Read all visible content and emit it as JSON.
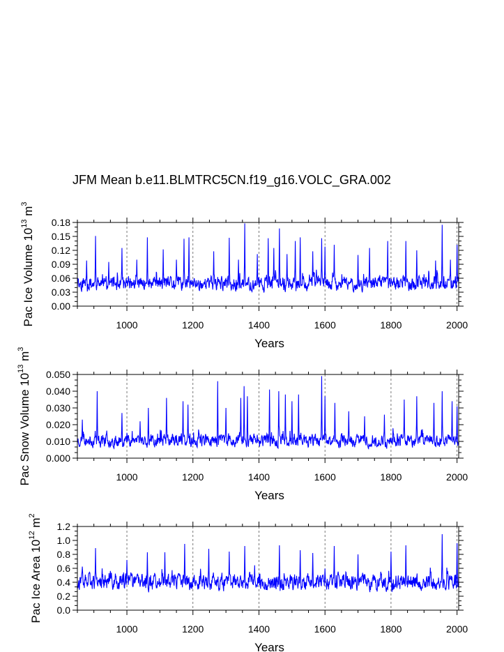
{
  "title": "JFM Mean b.e11.BLMTRC5CN.f19_g16.VOLC_GRA.002",
  "series_color": "#0000ff",
  "chart_data": [
    {
      "type": "line",
      "id": "ice-volume",
      "xlabel": "Years",
      "ylabel": {
        "main": "Pac Ice Volume 10",
        "exp1": "13",
        "unit": " m",
        "exp2": "3"
      },
      "xlim": [
        850,
        2005
      ],
      "ylim": [
        0.0,
        0.18
      ],
      "xticks": [
        1000,
        1200,
        1400,
        1600,
        1800,
        2000
      ],
      "xtick_labels": [
        "1000",
        "1200",
        "1400",
        "1600",
        "1800",
        "2000"
      ],
      "yticks": [
        0.0,
        0.03,
        0.06,
        0.09,
        0.12,
        0.15,
        0.18
      ],
      "ytick_labels": [
        "0.00",
        "0.03",
        "0.06",
        "0.09",
        "0.12",
        "0.15",
        "0.18"
      ],
      "series": [
        {
          "name": "Pac Ice Volume",
          "x_start": 850,
          "x_end": 2005,
          "mean": 0.048,
          "spread": 0.014,
          "min": 0.012,
          "seed": 11,
          "peaks": [
            [
              878,
              0.098
            ],
            [
              905,
              0.151
            ],
            [
              945,
              0.095
            ],
            [
              985,
              0.125
            ],
            [
              1030,
              0.1
            ],
            [
              1062,
              0.148
            ],
            [
              1110,
              0.122
            ],
            [
              1150,
              0.1
            ],
            [
              1173,
              0.145
            ],
            [
              1188,
              0.148
            ],
            [
              1263,
              0.118
            ],
            [
              1310,
              0.147
            ],
            [
              1338,
              0.1
            ],
            [
              1357,
              0.178
            ],
            [
              1395,
              0.112
            ],
            [
              1428,
              0.146
            ],
            [
              1445,
              0.125
            ],
            [
              1462,
              0.167
            ],
            [
              1485,
              0.112
            ],
            [
              1510,
              0.14
            ],
            [
              1525,
              0.148
            ],
            [
              1563,
              0.118
            ],
            [
              1590,
              0.146
            ],
            [
              1600,
              0.128
            ],
            [
              1628,
              0.132
            ],
            [
              1700,
              0.11
            ],
            [
              1735,
              0.125
            ],
            [
              1790,
              0.14
            ],
            [
              1845,
              0.14
            ],
            [
              1878,
              0.12
            ],
            [
              1935,
              0.098
            ],
            [
              1955,
              0.175
            ],
            [
              1980,
              0.1
            ],
            [
              2000,
              0.132
            ]
          ]
        }
      ]
    },
    {
      "type": "line",
      "id": "snow-volume",
      "xlabel": "Years",
      "ylabel": {
        "main": "Pac Snow Volume 10",
        "exp1": "13",
        "unit": " m",
        "exp2": "3"
      },
      "xlim": [
        850,
        2005
      ],
      "ylim": [
        0.0,
        0.05
      ],
      "xticks": [
        1000,
        1200,
        1400,
        1600,
        1800,
        2000
      ],
      "xtick_labels": [
        "1000",
        "1200",
        "1400",
        "1600",
        "1800",
        "2000"
      ],
      "yticks": [
        0.0,
        0.01,
        0.02,
        0.03,
        0.04,
        0.05
      ],
      "ytick_labels": [
        "0.000",
        "0.010",
        "0.020",
        "0.030",
        "0.040",
        "0.050"
      ],
      "series": [
        {
          "name": "Pac Snow Volume",
          "x_start": 850,
          "x_end": 2005,
          "mean": 0.0105,
          "spread": 0.0035,
          "min": 0.003,
          "seed": 23,
          "peaks": [
            [
              865,
              0.023
            ],
            [
              910,
              0.04
            ],
            [
              985,
              0.027
            ],
            [
              1040,
              0.022
            ],
            [
              1065,
              0.03
            ],
            [
              1120,
              0.036
            ],
            [
              1170,
              0.034
            ],
            [
              1185,
              0.032
            ],
            [
              1275,
              0.046
            ],
            [
              1300,
              0.03
            ],
            [
              1345,
              0.036
            ],
            [
              1355,
              0.043
            ],
            [
              1365,
              0.037
            ],
            [
              1432,
              0.041
            ],
            [
              1460,
              0.04
            ],
            [
              1480,
              0.038
            ],
            [
              1500,
              0.034
            ],
            [
              1520,
              0.038
            ],
            [
              1590,
              0.049
            ],
            [
              1600,
              0.037
            ],
            [
              1630,
              0.033
            ],
            [
              1672,
              0.028
            ],
            [
              1720,
              0.025
            ],
            [
              1780,
              0.026
            ],
            [
              1840,
              0.035
            ],
            [
              1878,
              0.037
            ],
            [
              1930,
              0.033
            ],
            [
              1955,
              0.04
            ],
            [
              1985,
              0.034
            ],
            [
              2000,
              0.031
            ]
          ]
        }
      ]
    },
    {
      "type": "line",
      "id": "ice-area",
      "xlabel": "Years",
      "ylabel": {
        "main": "Pac Ice Area 10",
        "exp1": "12",
        "unit": " m",
        "exp2": "2"
      },
      "xlim": [
        850,
        2005
      ],
      "ylim": [
        0.0,
        1.2
      ],
      "xticks": [
        1000,
        1200,
        1400,
        1600,
        1800,
        2000
      ],
      "xtick_labels": [
        "1000",
        "1200",
        "1400",
        "1600",
        "1800",
        "2000"
      ],
      "yticks": [
        0.0,
        0.2,
        0.4,
        0.6,
        0.8,
        1.0,
        1.2
      ],
      "ytick_labels": [
        "0.0",
        "0.2",
        "0.4",
        "0.6",
        "0.8",
        "1.0",
        "1.2"
      ],
      "series": [
        {
          "name": "Pac Ice Area",
          "x_start": 850,
          "x_end": 2005,
          "mean": 0.4,
          "spread": 0.11,
          "min": 0.1,
          "seed": 37,
          "peaks": [
            [
              905,
              0.89
            ],
            [
              1000,
              0.72
            ],
            [
              1062,
              0.83
            ],
            [
              1115,
              0.83
            ],
            [
              1175,
              0.95
            ],
            [
              1248,
              0.88
            ],
            [
              1310,
              0.84
            ],
            [
              1357,
              0.92
            ],
            [
              1462,
              0.93
            ],
            [
              1525,
              0.86
            ],
            [
              1563,
              0.82
            ],
            [
              1628,
              0.92
            ],
            [
              1700,
              0.8
            ],
            [
              1800,
              0.84
            ],
            [
              1845,
              0.93
            ],
            [
              1955,
              1.09
            ],
            [
              2000,
              0.96
            ]
          ]
        }
      ]
    }
  ]
}
